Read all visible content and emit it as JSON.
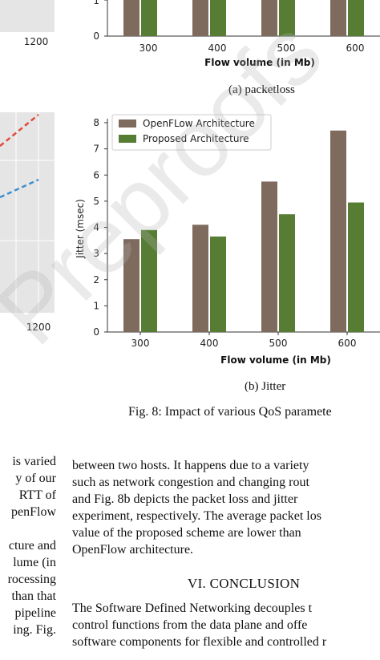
{
  "figure": {
    "caption": "Fig. 8: Impact of various QoS paramete",
    "subfig_a_caption": "(a) packetloss",
    "subfig_b_caption": "(b) Jitter"
  },
  "watermark": "Preproofs",
  "colors": {
    "openflow": "#7e6b5e",
    "proposed": "#567d33",
    "grid_bg": "#e5e5e5"
  },
  "chart_data": [
    {
      "type": "bar",
      "panel": "packetloss (partial, top-right)",
      "categories": [
        "300",
        "400",
        "500",
        "600"
      ],
      "xlabel": "Flow volume (in Mb)",
      "ytick_labels": [
        "1",
        "0"
      ]
    },
    {
      "type": "bar",
      "panel": "jitter",
      "categories": [
        "300",
        "400",
        "500",
        "600"
      ],
      "series": [
        {
          "name": "OpenFLow Architecture",
          "values": [
            3.55,
            4.1,
            5.75,
            7.7
          ]
        },
        {
          "name": "Proposed Architecture",
          "values": [
            3.9,
            3.65,
            4.5,
            4.95
          ]
        }
      ],
      "xlabel": "Flow volume (in Mb)",
      "ylabel": "Jitter (msec)",
      "ylim": [
        0,
        8
      ],
      "yticks": [
        "0",
        "1",
        "2",
        "3",
        "4",
        "5",
        "6",
        "7",
        "8"
      ],
      "legend": "top-left"
    },
    {
      "type": "line",
      "panel": "partial left line chart",
      "xtick_top": "1200",
      "xtick_bottom": "1200"
    }
  ],
  "text": {
    "right_col": [
      "between two hosts. It happens due to a variety",
      "such as network congestion and changing rout",
      "and Fig. 8b depicts the packet loss and jitter",
      "experiment, respectively. The average packet los",
      "value of the proposed scheme are lower than",
      "OpenFlow architecture."
    ],
    "section_heading": "VI. CONCLUSION",
    "conclusion": [
      "The Software Defined Networking decouples t",
      "control functions from the data plane and offe",
      "software components for flexible and controlled r"
    ],
    "left_col": [
      "is varied",
      "y of our",
      "RTT of",
      "penFlow",
      "",
      "cture and",
      "lume (in",
      "rocessing",
      "than that",
      "pipeline",
      "ing. Fig."
    ]
  }
}
